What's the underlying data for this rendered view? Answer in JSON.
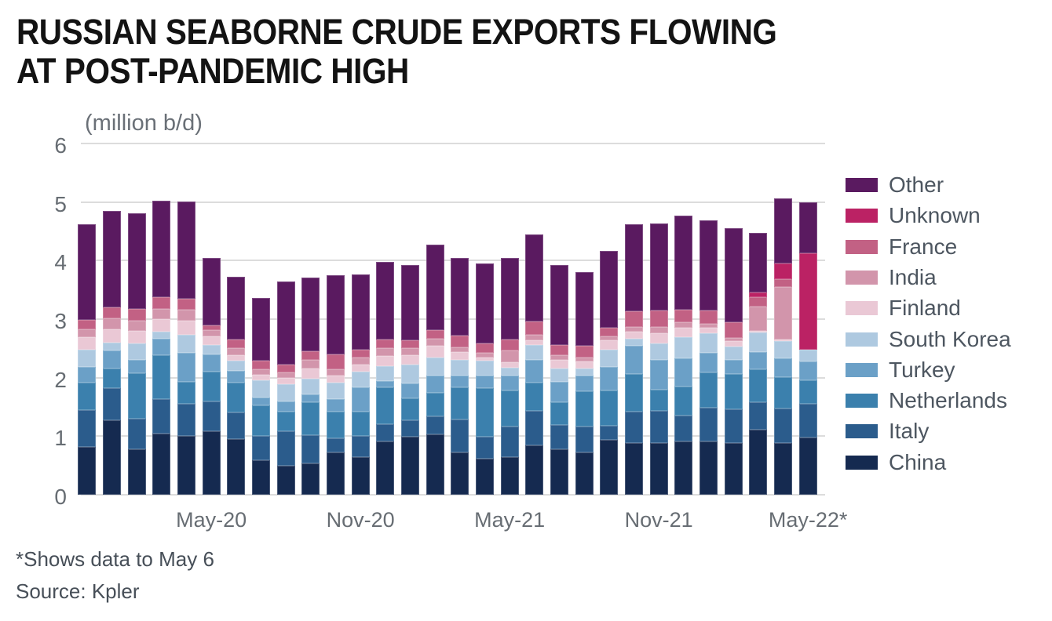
{
  "title": {
    "line1": "RUSSIAN SEABORNE CRUDE EXPORTS FLOWING",
    "line2": "AT POST-PANDEMIC HIGH"
  },
  "unit_label": "(million b/d)",
  "footnote": "*Shows data to May 6",
  "source": "Source: Kpler",
  "styles": {
    "background": "#ffffff",
    "title_color": "#131313",
    "axis_text_color": "#676d73",
    "legend_text_color": "#4d5660",
    "footer_text_color": "#474f58",
    "gridline_color": "#dcdcdc"
  },
  "chart_data": {
    "type": "bar",
    "stacked": true,
    "title": "RUSSIAN SEABORNE CRUDE EXPORTS FLOWING AT POST-PANDEMIC HIGH",
    "unit": "million b/d",
    "ylim": [
      0,
      6
    ],
    "yticks": [
      0,
      1,
      2,
      3,
      4,
      5,
      6
    ],
    "grid": true,
    "legend_position": "right",
    "x_tick_labels_shown": [
      "May-20",
      "Nov-20",
      "May-21",
      "Nov-21",
      "May-22*"
    ],
    "categories": [
      "Dec-19",
      "Jan-20",
      "Feb-20",
      "Mar-20",
      "Apr-20",
      "May-20",
      "Jun-20",
      "Jul-20",
      "Aug-20",
      "Sep-20",
      "Oct-20",
      "Nov-20",
      "Dec-20",
      "Jan-21",
      "Feb-21",
      "Mar-21",
      "Apr-21",
      "May-21",
      "Jun-21",
      "Jul-21",
      "Aug-21",
      "Sep-21",
      "Oct-21",
      "Nov-21",
      "Dec-21",
      "Jan-22",
      "Feb-22",
      "Mar-22",
      "Apr-22",
      "May-22*"
    ],
    "series": [
      {
        "name": "China",
        "color": "#152a50",
        "values": [
          0.82,
          1.27,
          0.78,
          1.04,
          1.01,
          1.09,
          0.95,
          0.59,
          0.49,
          0.53,
          0.73,
          0.64,
          0.91,
          0.99,
          1.03,
          0.72,
          0.62,
          0.64,
          0.85,
          0.78,
          0.72,
          0.94,
          0.88,
          0.89,
          0.91,
          0.91,
          0.88,
          1.11,
          0.88,
          0.98
        ]
      },
      {
        "name": "Italy",
        "color": "#2b5c8c",
        "values": [
          0.63,
          0.55,
          0.52,
          0.6,
          0.54,
          0.51,
          0.45,
          0.42,
          0.59,
          0.49,
          0.24,
          0.36,
          0.3,
          0.28,
          0.31,
          0.56,
          0.37,
          0.52,
          0.59,
          0.41,
          0.44,
          0.24,
          0.54,
          0.54,
          0.44,
          0.58,
          0.58,
          0.47,
          0.6,
          0.58
        ]
      },
      {
        "name": "Netherlands",
        "color": "#3b80ad",
        "values": [
          0.46,
          0.34,
          0.77,
          0.74,
          0.38,
          0.5,
          0.51,
          0.52,
          0.34,
          0.56,
          0.45,
          0.42,
          0.62,
          0.38,
          0.4,
          0.56,
          0.83,
          0.62,
          0.47,
          0.39,
          0.61,
          0.6,
          0.64,
          0.36,
          0.5,
          0.6,
          0.6,
          0.56,
          0.53,
          0.39
        ]
      },
      {
        "name": "Turkey",
        "color": "#6ba0c7",
        "values": [
          0.28,
          0.3,
          0.24,
          0.29,
          0.5,
          0.3,
          0.2,
          0.13,
          0.18,
          0.13,
          0.21,
          0.41,
          0.11,
          0.25,
          0.3,
          0.19,
          0.21,
          0.25,
          0.4,
          0.35,
          0.26,
          0.4,
          0.49,
          0.52,
          0.48,
          0.34,
          0.25,
          0.3,
          0.32,
          0.33
        ]
      },
      {
        "name": "South Korea",
        "color": "#aec9e0",
        "values": [
          0.29,
          0.14,
          0.27,
          0.12,
          0.3,
          0.16,
          0.18,
          0.29,
          0.29,
          0.27,
          0.28,
          0.27,
          0.26,
          0.33,
          0.3,
          0.28,
          0.26,
          0.14,
          0.25,
          0.23,
          0.13,
          0.3,
          0.12,
          0.27,
          0.36,
          0.33,
          0.22,
          0.33,
          0.29,
          0.2
        ]
      },
      {
        "name": "Finland",
        "color": "#eac8d5",
        "values": [
          0.21,
          0.22,
          0.22,
          0.21,
          0.25,
          0.15,
          0.1,
          0.1,
          0.1,
          0.18,
          0.12,
          0.12,
          0.17,
          0.15,
          0.21,
          0.13,
          0.05,
          0.1,
          0.08,
          0.14,
          0.12,
          0.16,
          0.12,
          0.18,
          0.16,
          0.09,
          0.1,
          0.03,
          0.03,
          0.0
        ]
      },
      {
        "name": "India",
        "color": "#d295ab",
        "values": [
          0.14,
          0.19,
          0.18,
          0.17,
          0.18,
          0.11,
          0.12,
          0.1,
          0.1,
          0.14,
          0.12,
          0.12,
          0.13,
          0.12,
          0.12,
          0.08,
          0.08,
          0.19,
          0.09,
          0.09,
          0.06,
          0.07,
          0.08,
          0.11,
          0.1,
          0.07,
          0.05,
          0.42,
          0.9,
          0.0
        ]
      },
      {
        "name": "France",
        "color": "#c26184",
        "values": [
          0.16,
          0.19,
          0.2,
          0.2,
          0.19,
          0.08,
          0.14,
          0.14,
          0.13,
          0.15,
          0.25,
          0.14,
          0.15,
          0.14,
          0.15,
          0.2,
          0.17,
          0.19,
          0.23,
          0.17,
          0.21,
          0.15,
          0.26,
          0.28,
          0.21,
          0.23,
          0.27,
          0.15,
          0.14,
          0.0
        ]
      },
      {
        "name": "Unknown",
        "color": "#bb2264",
        "values": [
          0,
          0,
          0,
          0,
          0,
          0,
          0,
          0,
          0,
          0,
          0,
          0,
          0,
          0,
          0,
          0,
          0,
          0,
          0,
          0,
          0,
          0,
          0,
          0,
          0,
          0,
          0,
          0.09,
          0.26,
          1.64
        ]
      },
      {
        "name": "Other",
        "color": "#5a1a60",
        "values": [
          1.63,
          1.65,
          1.63,
          1.66,
          1.66,
          1.14,
          1.07,
          1.07,
          1.42,
          1.26,
          1.35,
          1.29,
          1.33,
          1.29,
          1.46,
          1.32,
          1.36,
          1.4,
          1.49,
          1.37,
          1.25,
          1.31,
          1.49,
          1.48,
          1.61,
          1.54,
          1.61,
          1.02,
          1.11,
          0.88
        ]
      }
    ],
    "legend_order_top_to_bottom": [
      "Other",
      "Unknown",
      "France",
      "India",
      "Finland",
      "South Korea",
      "Turkey",
      "Netherlands",
      "Italy",
      "China"
    ]
  }
}
